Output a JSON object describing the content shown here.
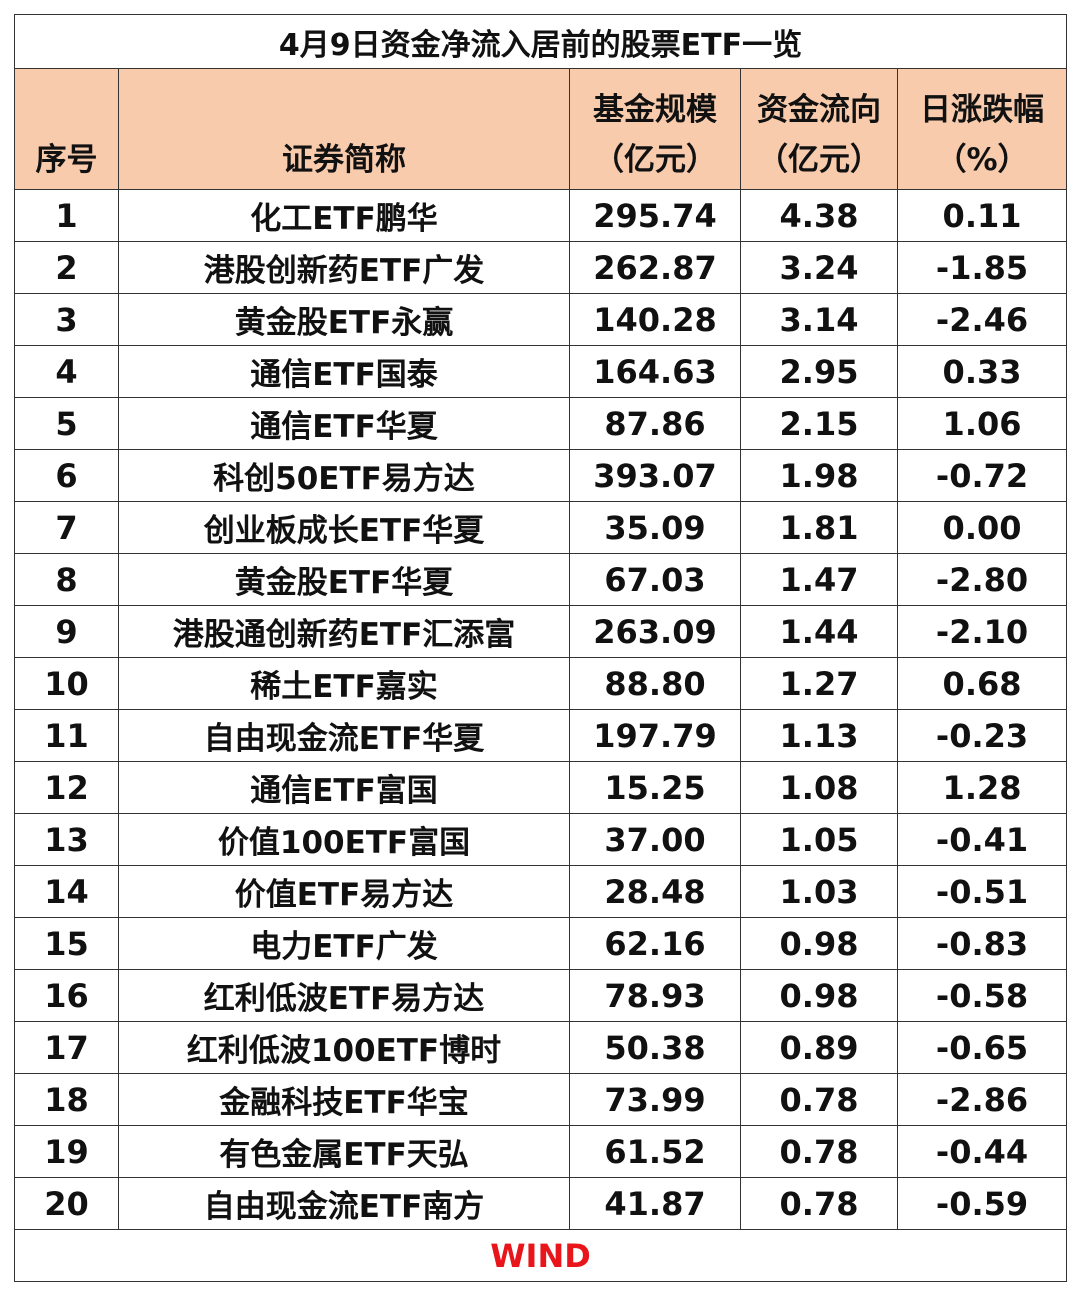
{
  "title": "4月9日资金净流入居前的股票ETF一览",
  "header_color": "#f8cbad",
  "columns": {
    "index": "序号",
    "name": "证券简称",
    "scale_line1": "基金规模",
    "scale_line2": "（亿元）",
    "flow_line1": "资金流向",
    "flow_line2": "（亿元）",
    "change_line1": "日涨跌幅",
    "change_line2": "（%）"
  },
  "rows": [
    {
      "index": "1",
      "name": "化工ETF鹏华",
      "scale": "295.74",
      "flow": "4.38",
      "change": "0.11"
    },
    {
      "index": "2",
      "name": "港股创新药ETF广发",
      "scale": "262.87",
      "flow": "3.24",
      "change": "-1.85"
    },
    {
      "index": "3",
      "name": "黄金股ETF永赢",
      "scale": "140.28",
      "flow": "3.14",
      "change": "-2.46"
    },
    {
      "index": "4",
      "name": "通信ETF国泰",
      "scale": "164.63",
      "flow": "2.95",
      "change": "0.33"
    },
    {
      "index": "5",
      "name": "通信ETF华夏",
      "scale": "87.86",
      "flow": "2.15",
      "change": "1.06"
    },
    {
      "index": "6",
      "name": "科创50ETF易方达",
      "scale": "393.07",
      "flow": "1.98",
      "change": "-0.72"
    },
    {
      "index": "7",
      "name": "创业板成长ETF华夏",
      "scale": "35.09",
      "flow": "1.81",
      "change": "0.00"
    },
    {
      "index": "8",
      "name": "黄金股ETF华夏",
      "scale": "67.03",
      "flow": "1.47",
      "change": "-2.80"
    },
    {
      "index": "9",
      "name": "港股通创新药ETF汇添富",
      "scale": "263.09",
      "flow": "1.44",
      "change": "-2.10"
    },
    {
      "index": "10",
      "name": "稀土ETF嘉实",
      "scale": "88.80",
      "flow": "1.27",
      "change": "0.68"
    },
    {
      "index": "11",
      "name": "自由现金流ETF华夏",
      "scale": "197.79",
      "flow": "1.13",
      "change": "-0.23"
    },
    {
      "index": "12",
      "name": "通信ETF富国",
      "scale": "15.25",
      "flow": "1.08",
      "change": "1.28"
    },
    {
      "index": "13",
      "name": "价值100ETF富国",
      "scale": "37.00",
      "flow": "1.05",
      "change": "-0.41"
    },
    {
      "index": "14",
      "name": "价值ETF易方达",
      "scale": "28.48",
      "flow": "1.03",
      "change": "-0.51"
    },
    {
      "index": "15",
      "name": "电力ETF广发",
      "scale": "62.16",
      "flow": "0.98",
      "change": "-0.83"
    },
    {
      "index": "16",
      "name": "红利低波ETF易方达",
      "scale": "78.93",
      "flow": "0.98",
      "change": "-0.58"
    },
    {
      "index": "17",
      "name": "红利低波100ETF博时",
      "scale": "50.38",
      "flow": "0.89",
      "change": "-0.65"
    },
    {
      "index": "18",
      "name": "金融科技ETF华宝",
      "scale": "73.99",
      "flow": "0.78",
      "change": "-2.86"
    },
    {
      "index": "19",
      "name": "有色金属ETF天弘",
      "scale": "61.52",
      "flow": "0.78",
      "change": "-0.44"
    },
    {
      "index": "20",
      "name": "自由现金流ETF南方",
      "scale": "41.87",
      "flow": "0.78",
      "change": "-0.59"
    }
  ],
  "footer": {
    "source": "WIND",
    "color": "#e8151b"
  }
}
